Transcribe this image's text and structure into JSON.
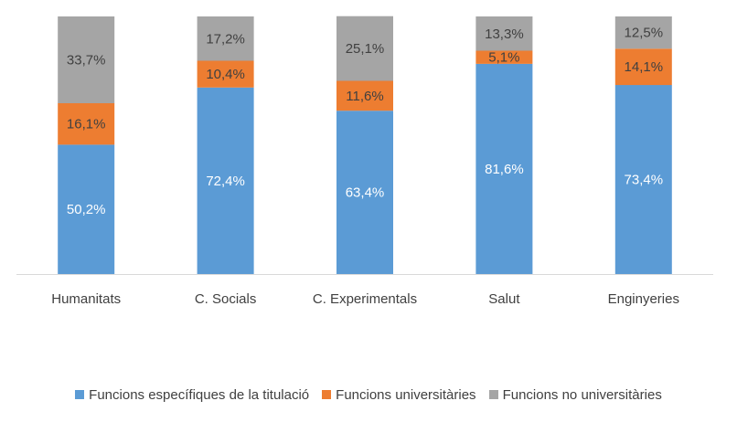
{
  "chart_data": {
    "type": "bar",
    "stacked": true,
    "categories": [
      "Humanitats",
      "C. Socials",
      "C. Experimentals",
      "Salut",
      "Enginyeries"
    ],
    "series": [
      {
        "name": "Funcions específiques de la titulació",
        "color": "#5B9BD5",
        "values": [
          50.2,
          72.4,
          63.4,
          81.6,
          73.4
        ],
        "labels": [
          "50,2%",
          "72,4%",
          "63,4%",
          "81,6%",
          "73,4%"
        ]
      },
      {
        "name": "Funcions universitàries",
        "color": "#ED7D31",
        "values": [
          16.1,
          10.4,
          11.6,
          5.1,
          14.1
        ],
        "labels": [
          "16,1%",
          "10,4%",
          "11,6%",
          "5,1%",
          "14,1%"
        ]
      },
      {
        "name": "Funcions no universitàries",
        "color": "#A5A5A5",
        "values": [
          33.7,
          17.2,
          25.1,
          13.3,
          12.5
        ],
        "labels": [
          "33,7%",
          "17,2%",
          "25,1%",
          "13,3%",
          "12,5%"
        ]
      }
    ],
    "ylim": [
      0,
      100
    ],
    "legend_position": "bottom",
    "title": "",
    "xlabel": "",
    "ylabel": ""
  }
}
